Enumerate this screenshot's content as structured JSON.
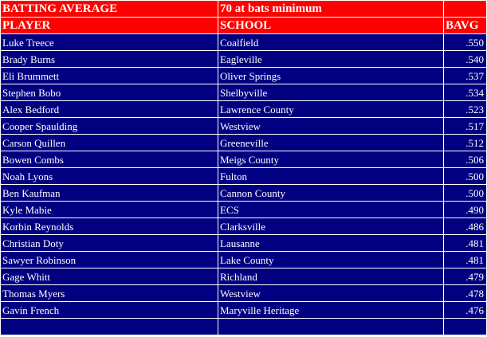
{
  "title": {
    "left": "BATTING AVERAGE",
    "right": "70 at bats minimum"
  },
  "headers": {
    "player": "PLAYER",
    "school": "SCHOOL",
    "avg": "BAVG"
  },
  "rows": [
    {
      "player": "Luke Treece",
      "school": "Coalfield",
      "avg": ".550"
    },
    {
      "player": "Brady Burns",
      "school": "Eagleville",
      "avg": ".540"
    },
    {
      "player": "Eli Brummett",
      "school": "Oliver Springs",
      "avg": ".537"
    },
    {
      "player": "Stephen Bobo",
      "school": "Shelbyville",
      "avg": ".534"
    },
    {
      "player": "Alex Bedford",
      "school": "Lawrence County",
      "avg": ".523"
    },
    {
      "player": "Cooper Spaulding",
      "school": "Westview",
      "avg": ".517"
    },
    {
      "player": "Carson Quillen",
      "school": "Greeneville",
      "avg": ".512"
    },
    {
      "player": "Bowen Combs",
      "school": "Meigs County",
      "avg": ".506"
    },
    {
      "player": "Noah Lyons",
      "school": "Fulton",
      "avg": ".500"
    },
    {
      "player": "Ben Kaufman",
      "school": "Cannon County",
      "avg": ".500"
    },
    {
      "player": "Kyle Mabie",
      "school": "ECS",
      "avg": ".490"
    },
    {
      "player": "Korbin Reynolds",
      "school": "Clarksville",
      "avg": ".486"
    },
    {
      "player": "Christian Doty",
      "school": "Lausanne",
      "avg": ".481"
    },
    {
      "player": "Sawyer Robinson",
      "school": "Lake County",
      "avg": ".481"
    },
    {
      "player": "Gage Whitt",
      "school": "Richland",
      "avg": ".479"
    },
    {
      "player": "Thomas Myers",
      "school": "Westview",
      "avg": ".478"
    },
    {
      "player": "Gavin French",
      "school": "Maryville Heritage",
      "avg": ".476"
    }
  ],
  "colors": {
    "header_bg": "#ff0000",
    "row_bg": "#000080",
    "text": "#ffffff"
  }
}
